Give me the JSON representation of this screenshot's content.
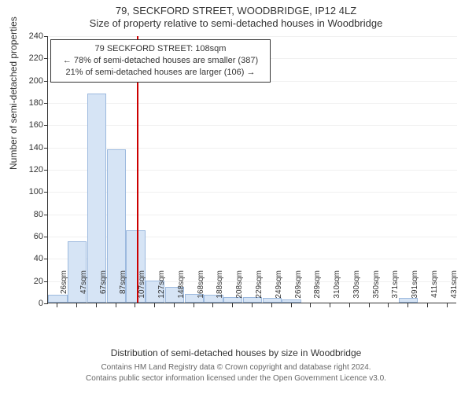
{
  "title": "79, SECKFORD STREET, WOODBRIDGE, IP12 4LZ",
  "subtitle": "Size of property relative to semi-detached houses in Woodbridge",
  "y_axis_title": "Number of semi-detached properties",
  "x_axis_title": "Distribution of semi-detached houses by size in Woodbridge",
  "footnote_line1": "Contains HM Land Registry data © Crown copyright and database right 2024.",
  "footnote_line2": "Contains public sector information licensed under the Open Government Licence v3.0.",
  "chart": {
    "type": "histogram",
    "ylim": [
      0,
      240
    ],
    "ytick_step": 20,
    "bar_fill": "#d6e4f5",
    "bar_stroke": "#9cb9de",
    "grid_color": "#f0f0f0",
    "axis_color": "#333333",
    "marker_color": "#cc0000",
    "marker_x_index": 4.05,
    "categories": [
      "26sqm",
      "47sqm",
      "67sqm",
      "87sqm",
      "107sqm",
      "127sqm",
      "148sqm",
      "168sqm",
      "188sqm",
      "208sqm",
      "229sqm",
      "249sqm",
      "269sqm",
      "289sqm",
      "310sqm",
      "330sqm",
      "350sqm",
      "371sqm",
      "391sqm",
      "411sqm",
      "431sqm"
    ],
    "values": [
      7,
      55,
      188,
      138,
      65,
      20,
      14,
      8,
      7,
      5,
      5,
      4,
      3,
      0,
      0,
      0,
      0,
      0,
      4,
      0,
      0
    ]
  },
  "infobox": {
    "line1": "79 SECKFORD STREET: 108sqm",
    "line2": "← 78% of semi-detached houses are smaller (387)",
    "line3": "21% of semi-detached houses are larger (106) →"
  }
}
